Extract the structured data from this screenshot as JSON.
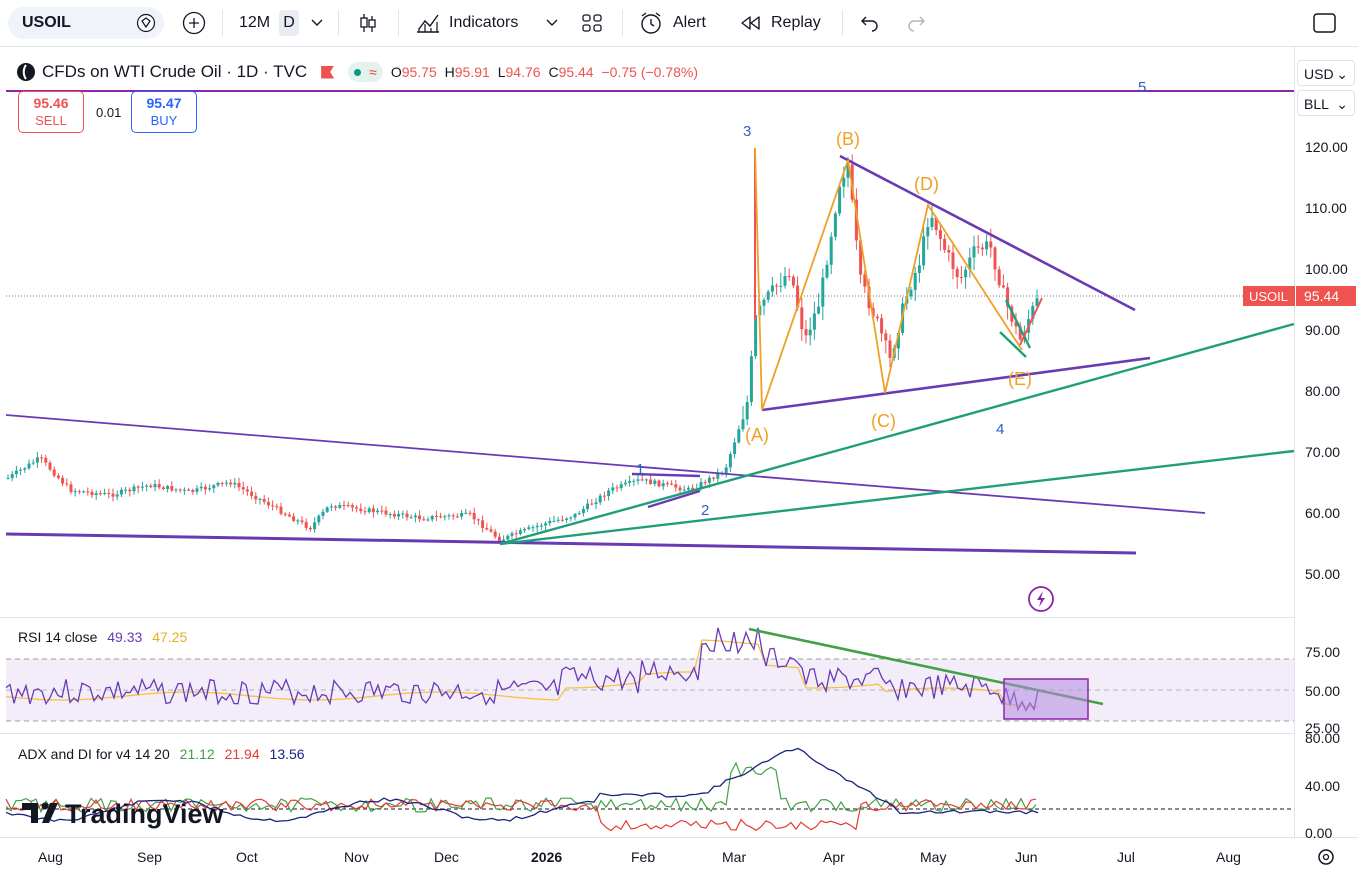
{
  "toolbar": {
    "symbol": "USOIL",
    "interval": "12M",
    "period": "D",
    "indicators_label": "Indicators",
    "alert_label": "Alert",
    "replay_label": "Replay"
  },
  "legend": {
    "title": "CFDs on WTI Crude Oil · 1D · TVC",
    "open_label": "O",
    "open": "95.75",
    "high_label": "H",
    "high": "95.91",
    "low_label": "L",
    "low": "94.76",
    "close_label": "C",
    "close": "95.44",
    "change": "−0.75 (−0.78%)"
  },
  "trade": {
    "sell_price": "95.46",
    "sell_label": "SELL",
    "spread": "0.01",
    "buy_price": "95.47",
    "buy_label": "BUY"
  },
  "price_axis": {
    "ticks": [
      "120.00",
      "110.00",
      "100.00",
      "90.00",
      "80.00",
      "70.00",
      "60.00",
      "50.00"
    ],
    "currency": "USD",
    "unit": "BLL",
    "last_symbol": "USOIL",
    "last_price": "95.44"
  },
  "annotations": {
    "wave_labels": [
      "1",
      "2",
      "3",
      "4",
      "5"
    ],
    "abc_labels": [
      "(A)",
      "(B)",
      "(C)",
      "(D)",
      "(E)"
    ]
  },
  "rsi": {
    "title": "RSI 14 close",
    "value": "49.33",
    "ma": "47.25",
    "ticks": [
      "75.00",
      "50.00",
      "25.00"
    ]
  },
  "adx": {
    "title": "ADX and DI for v4 14 20",
    "adx": "21.12",
    "di_plus": "21.94",
    "di_minus": "13.56",
    "ticks": [
      "80.00",
      "40.00",
      "0.00"
    ]
  },
  "time_axis": [
    "Aug",
    "Sep",
    "Oct",
    "Nov",
    "Dec",
    "2026",
    "Feb",
    "Mar",
    "Apr",
    "May",
    "Jun",
    "Jul",
    "Aug"
  ],
  "watermark": "TradingView",
  "colors": {
    "up": "#26a69a",
    "down": "#ef5350",
    "wave_purple": "#6a3ab5",
    "wave_orange": "#f0a024",
    "trend_green": "#1f9e7a",
    "rsi_line": "#6a3ab5",
    "rsi_ma": "#f5c242",
    "adx_line": "#1a237e",
    "di_plus": "#43a047",
    "di_minus": "#e53935"
  }
}
